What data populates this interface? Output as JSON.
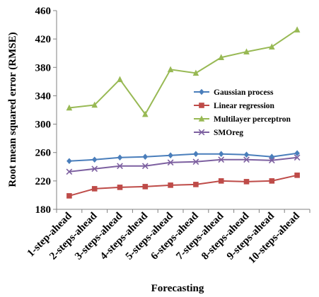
{
  "chart_data": {
    "type": "line",
    "xlabel": "Forecasting",
    "ylabel": "Root mean squared error (RMSE)",
    "ylim": [
      180,
      460
    ],
    "yticks": [
      "180",
      "220",
      "260",
      "300",
      "340",
      "380",
      "420",
      "460"
    ],
    "categories": [
      "1-step-ahead",
      "2-steps-ahead",
      "3-steps-ahead",
      "4-steps-ahead",
      "5-steps-ahead",
      "6-steps-ahead",
      "7-steps-ahead",
      "8-steps-ahead",
      "9-steps-ahead",
      "10-steps-ahead"
    ],
    "grid": false,
    "legend_position": "right",
    "series": [
      {
        "name": "Gaussian process",
        "color": "#4A7EBB",
        "marker": "diamond",
        "values": [
          248,
          250,
          253,
          254,
          256,
          258,
          258,
          257,
          254,
          259
        ]
      },
      {
        "name": "Linear regression",
        "color": "#BE4B48",
        "marker": "square",
        "values": [
          199,
          209,
          211,
          212,
          214,
          215,
          220,
          219,
          220,
          228
        ]
      },
      {
        "name": "Multilayer perceptron",
        "color": "#98B954",
        "marker": "triangle",
        "values": [
          323,
          327,
          363,
          314,
          377,
          372,
          394,
          402,
          409,
          433
        ]
      },
      {
        "name": "SMOreg",
        "color": "#7D60A0",
        "marker": "x",
        "values": [
          233,
          237,
          241,
          241,
          246,
          247,
          250,
          250,
          249,
          253
        ]
      }
    ]
  }
}
